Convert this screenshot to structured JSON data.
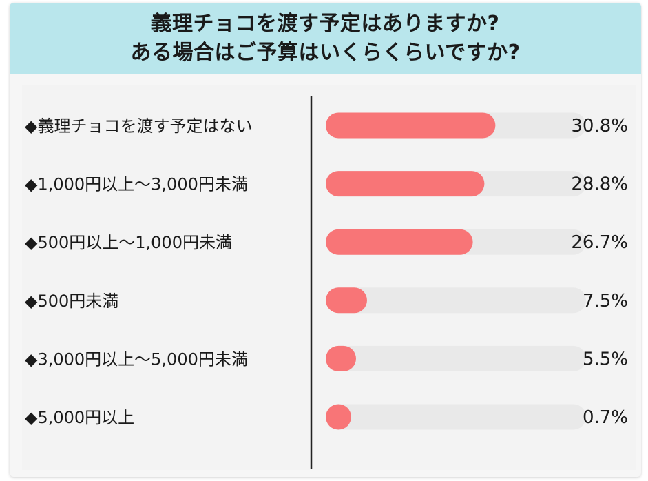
{
  "title": {
    "line1": "義理チョコを渡す予定はありますか?",
    "line2": "ある場合はご予算はいくらくらいですか?"
  },
  "colors": {
    "header_bg": "#b9e6ec",
    "bar": "#f87577",
    "track": "#e9e9e9",
    "divider": "#222222"
  },
  "chart_data": {
    "type": "bar",
    "orientation": "horizontal",
    "categories": [
      "◆義理チョコを渡す予定はない",
      "◆1,000円以上～3,000円未満",
      "◆500円以上～1,000円未満",
      "◆500円未満",
      "◆3,000円以上～5,000円未満",
      "◆5,000円以上"
    ],
    "values": [
      30.8,
      28.8,
      26.7,
      7.5,
      5.5,
      0.7
    ],
    "value_labels": [
      "30.8%",
      "28.8%",
      "26.7%",
      "7.5%",
      "5.5%",
      "0.7%"
    ],
    "xlim": [
      0,
      100
    ],
    "grid": false,
    "legend": "none"
  }
}
